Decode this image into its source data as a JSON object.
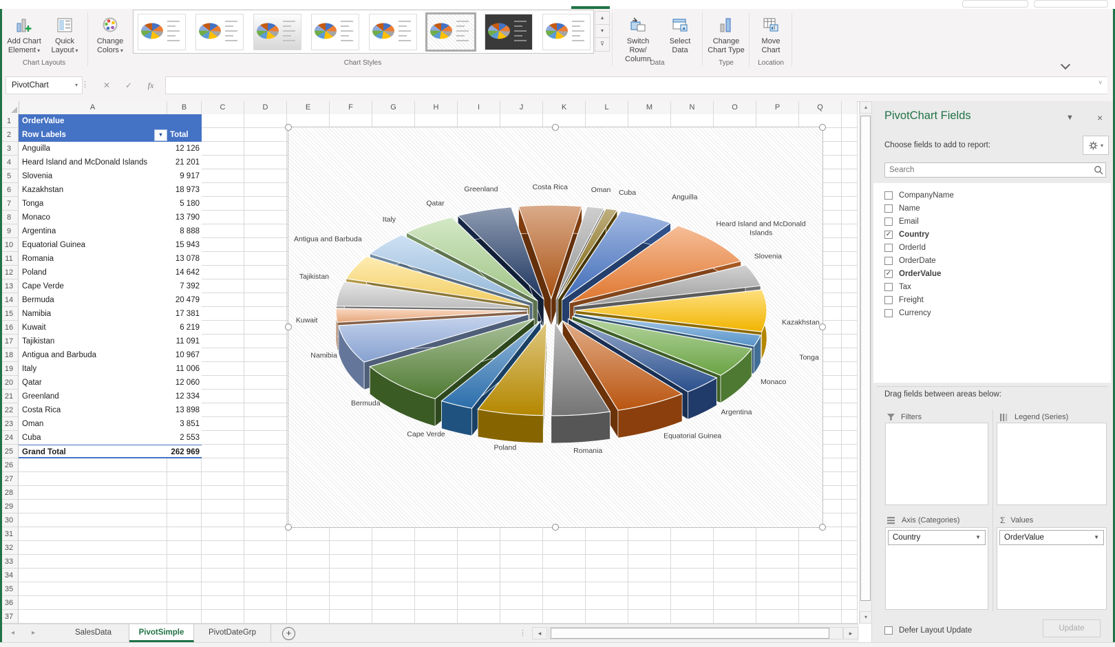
{
  "ribbon": {
    "add_chart_element": "Add Chart Element",
    "quick_layout": "Quick Layout",
    "change_colors": "Change Colors",
    "switch_row_column": "Switch Row/ Column",
    "select_data": "Select Data",
    "change_chart_type": "Change Chart Type",
    "move_chart": "Move Chart",
    "group_labels": [
      "Chart Layouts",
      "Chart Styles",
      "Data",
      "Type",
      "Location"
    ],
    "style_gallery": {
      "count": 8,
      "selected_index": 6
    }
  },
  "formula_bar": {
    "name_box": "PivotChart",
    "formula": ""
  },
  "sheet": {
    "column_headers": [
      "A",
      "B",
      "C",
      "D",
      "E",
      "F",
      "G",
      "H",
      "I",
      "J",
      "K",
      "L",
      "M",
      "N",
      "O",
      "P",
      "Q"
    ],
    "visible_rows": 37,
    "pivot_table": {
      "title": "OrderValue",
      "row_labels_header": "Row Labels",
      "total_header": "Total",
      "rows": [
        [
          "Anguilla",
          "12 126"
        ],
        [
          "Heard Island and McDonald Islands",
          "21 201"
        ],
        [
          "Slovenia",
          "9 917"
        ],
        [
          "Kazakhstan",
          "18 973"
        ],
        [
          "Tonga",
          "5 180"
        ],
        [
          "Monaco",
          "13 790"
        ],
        [
          "Argentina",
          "8 888"
        ],
        [
          "Equatorial Guinea",
          "15 943"
        ],
        [
          "Romania",
          "13 078"
        ],
        [
          "Poland",
          "14 642"
        ],
        [
          "Cape Verde",
          "7 392"
        ],
        [
          "Bermuda",
          "20 479"
        ],
        [
          "Namibia",
          "17 381"
        ],
        [
          "Kuwait",
          "6 219"
        ],
        [
          "Tajikistan",
          "11 091"
        ],
        [
          "Antigua and Barbuda",
          "10 967"
        ],
        [
          "Italy",
          "11 006"
        ],
        [
          "Qatar",
          "12 060"
        ],
        [
          "Greenland",
          "12 334"
        ],
        [
          "Costa Rica",
          "13 898"
        ],
        [
          "Oman",
          "3 851"
        ],
        [
          "Cuba",
          "2 553"
        ]
      ],
      "grand_total_label": "Grand Total",
      "grand_total_value": "262 969",
      "header_fill": "#4472C4"
    }
  },
  "chart_data": {
    "type": "pie",
    "subtype": "3d-exploded",
    "title": "",
    "legend": "none",
    "data_labels": "category-name",
    "start_angle_deg": 18,
    "total": 262969,
    "categories": [
      "Anguilla",
      "Heard Island and McDonald Islands",
      "Slovenia",
      "Kazakhstan",
      "Tonga",
      "Monaco",
      "Argentina",
      "Equatorial Guinea",
      "Romania",
      "Poland",
      "Cape Verde",
      "Bermuda",
      "Namibia",
      "Kuwait",
      "Tajikistan",
      "Antigua and Barbuda",
      "Italy",
      "Qatar",
      "Greenland",
      "Costa Rica",
      "Oman",
      "Cuba"
    ],
    "values": [
      12126,
      21201,
      9917,
      18973,
      5180,
      13790,
      8888,
      15943,
      13078,
      14642,
      7392,
      20479,
      17381,
      6219,
      11091,
      10967,
      11006,
      12060,
      12334,
      13898,
      3851,
      2553
    ],
    "colors": [
      "#4472C4",
      "#ED7D31",
      "#A5A5A5",
      "#FFC000",
      "#5B9BD5",
      "#70AD47",
      "#2E5596",
      "#C55A11",
      "#7B7B7B",
      "#BF9000",
      "#2E75B6",
      "#548235",
      "#8FAADC",
      "#F4B183",
      "#C9C9C9",
      "#FFD966",
      "#9DC3E6",
      "#A9D18E",
      "#1F3864",
      "#B55714",
      "#9E9E9E",
      "#7F6000"
    ]
  },
  "fields_pane": {
    "title": "PivotChart Fields",
    "subtitle": "Choose fields to add to report:",
    "search_placeholder": "Search",
    "fields": [
      {
        "name": "CompanyName",
        "checked": false
      },
      {
        "name": "Name",
        "checked": false
      },
      {
        "name": "Email",
        "checked": false
      },
      {
        "name": "Country",
        "checked": true
      },
      {
        "name": "OrderId",
        "checked": false
      },
      {
        "name": "OrderDate",
        "checked": false
      },
      {
        "name": "OrderValue",
        "checked": true
      },
      {
        "name": "Tax",
        "checked": false
      },
      {
        "name": "Freight",
        "checked": false
      },
      {
        "name": "Currency",
        "checked": false
      }
    ],
    "drag_hint": "Drag fields between areas below:",
    "areas": {
      "filters": {
        "label": "Filters",
        "items": []
      },
      "legend": {
        "label": "Legend (Series)",
        "items": []
      },
      "axis": {
        "label": "Axis (Categories)",
        "items": [
          "Country"
        ]
      },
      "values": {
        "label": "Values",
        "items": [
          "OrderValue"
        ]
      }
    },
    "defer_label": "Defer Layout Update",
    "update_label": "Update"
  },
  "sheet_tabs": {
    "tabs": [
      "SalesData",
      "PivotSimple",
      "PivotDateGrp"
    ],
    "active": "PivotSimple"
  }
}
